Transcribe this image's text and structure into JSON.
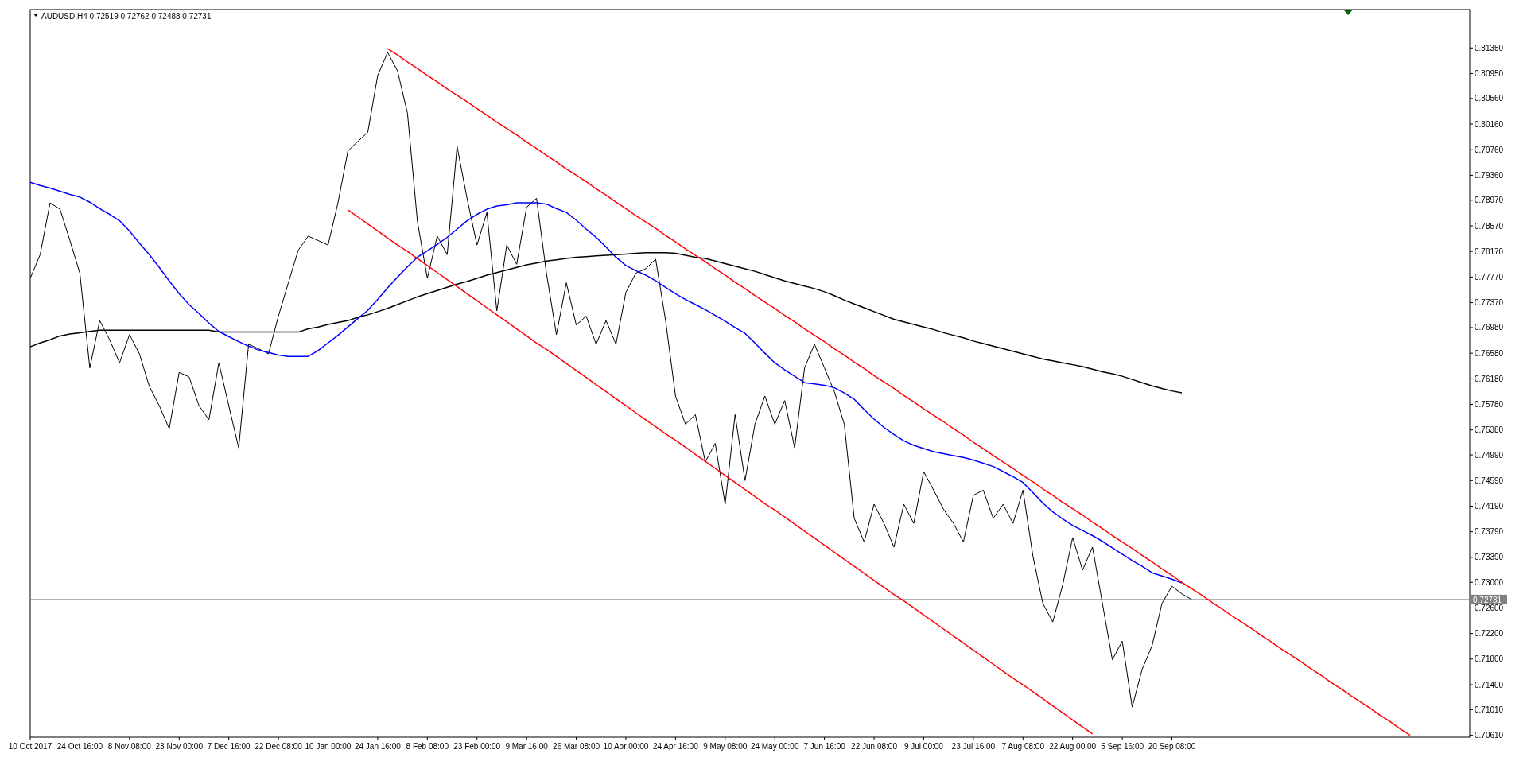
{
  "chart_data": {
    "type": "line",
    "title": "AUDUSD,H4  0.72519 0.72762 0.72488 0.72731",
    "ylim": [
      0.7058,
      0.8195
    ],
    "categories": [
      "10 Oct 2017",
      null,
      null,
      null,
      null,
      "24 Oct 16:00",
      null,
      null,
      null,
      null,
      "8 Nov 08:00",
      null,
      null,
      null,
      null,
      "23 Nov 00:00",
      null,
      null,
      null,
      null,
      "7 Dec 16:00",
      null,
      null,
      null,
      null,
      "22 Dec 08:00",
      null,
      null,
      null,
      null,
      "10 Jan 00:00",
      null,
      null,
      null,
      null,
      "24 Jan 16:00",
      null,
      null,
      null,
      null,
      "8 Feb 08:00",
      null,
      null,
      null,
      null,
      "23 Feb 00:00",
      null,
      null,
      null,
      null,
      "9 Mar 16:00",
      null,
      null,
      null,
      null,
      "26 Mar 08:00",
      null,
      null,
      null,
      null,
      "10 Apr 00:00",
      null,
      null,
      null,
      null,
      "24 Apr 16:00",
      null,
      null,
      null,
      null,
      "9 May 08:00",
      null,
      null,
      null,
      null,
      "24 May 00:00",
      null,
      null,
      null,
      null,
      "7 Jun 16:00",
      null,
      null,
      null,
      null,
      "22 Jun 08:00",
      null,
      null,
      null,
      null,
      "9 Jul 00:00",
      null,
      null,
      null,
      null,
      "23 Jul 16:00",
      null,
      null,
      null,
      null,
      "7 Aug 08:00",
      null,
      null,
      null,
      null,
      "22 Aug 00:00",
      null,
      null,
      null,
      null,
      "5 Sep 16:00",
      null,
      null,
      null,
      null,
      "20 Sep 08:00",
      null,
      null,
      null,
      null,
      null,
      null,
      null,
      null,
      null,
      null,
      null,
      null,
      null,
      null,
      null,
      null,
      null,
      null,
      null,
      null,
      null,
      null,
      null,
      null,
      null,
      null,
      null,
      null,
      null,
      null
    ],
    "yticks": [
      {
        "value": 0.8135,
        "label": "0.81350"
      },
      {
        "value": 0.8095,
        "label": "0.80950"
      },
      {
        "value": 0.8056,
        "label": "0.80560"
      },
      {
        "value": 0.8016,
        "label": "0.80160"
      },
      {
        "value": 0.7976,
        "label": "0.79760"
      },
      {
        "value": 0.7936,
        "label": "0.79360"
      },
      {
        "value": 0.7897,
        "label": "0.78970"
      },
      {
        "value": 0.7857,
        "label": "0.78570"
      },
      {
        "value": 0.7817,
        "label": "0.78170"
      },
      {
        "value": 0.7777,
        "label": "0.77770"
      },
      {
        "value": 0.7737,
        "label": "0.77370"
      },
      {
        "value": 0.7698,
        "label": "0.76980"
      },
      {
        "value": 0.7658,
        "label": "0.76580"
      },
      {
        "value": 0.7618,
        "label": "0.76180"
      },
      {
        "value": 0.7578,
        "label": "0.75780"
      },
      {
        "value": 0.7538,
        "label": "0.75380"
      },
      {
        "value": 0.7499,
        "label": "0.74990"
      },
      {
        "value": 0.7459,
        "label": "0.74590"
      },
      {
        "value": 0.7419,
        "label": "0.74190"
      },
      {
        "value": 0.7379,
        "label": "0.73790"
      },
      {
        "value": 0.7339,
        "label": "0.73390"
      },
      {
        "value": 0.73,
        "label": "0.73000"
      },
      {
        "value": 0.726,
        "label": "0.72600"
      },
      {
        "value": 0.722,
        "label": "0.72200"
      },
      {
        "value": 0.718,
        "label": "0.71800"
      },
      {
        "value": 0.714,
        "label": "0.71400"
      },
      {
        "value": 0.7101,
        "label": "0.71010"
      },
      {
        "value": 0.7061,
        "label": "0.70610"
      }
    ],
    "ref_lines": [
      {
        "axis": "y",
        "value": 0.72731,
        "label": "0.72731",
        "color": "#808080"
      }
    ],
    "series": [
      {
        "color": "#000000",
        "values": [
          0.7775,
          0.7812,
          0.7893,
          0.7883,
          0.7834,
          0.7783,
          0.7635,
          0.7709,
          0.7679,
          0.7643,
          0.7687,
          0.7657,
          0.7606,
          0.7576,
          0.754,
          0.7628,
          0.7621,
          0.7576,
          0.7554,
          0.7643,
          0.7576,
          0.751,
          0.7672,
          0.7665,
          0.7657,
          0.7716,
          0.7768,
          0.7819,
          0.7841,
          0.7834,
          0.7827,
          0.7893,
          0.7974,
          0.7989,
          0.8003,
          0.8092,
          0.8128,
          0.8099,
          0.8033,
          0.7864,
          0.7775,
          0.7841,
          0.7812,
          0.7981,
          0.79,
          0.7827,
          0.7878,
          0.7724,
          0.7827,
          0.7797,
          0.7886,
          0.79,
          0.7783,
          0.7687,
          0.7768,
          0.7702,
          0.7716,
          0.7672,
          0.7709,
          0.7672,
          0.7753,
          0.7783,
          0.779,
          0.7805,
          0.7709,
          0.7591,
          0.7547,
          0.7562,
          0.7488,
          0.7517,
          0.7422,
          0.7562,
          0.7459,
          0.7547,
          0.7591,
          0.7547,
          0.7584,
          0.751,
          0.7635,
          0.7672,
          0.7635,
          0.7598,
          0.7547,
          0.74,
          0.7363,
          0.7422,
          0.7392,
          0.7355,
          0.7422,
          0.7392,
          0.7473,
          0.7444,
          0.7414,
          0.7392,
          0.7363,
          0.7436,
          0.7444,
          0.74,
          0.7422,
          0.7392,
          0.7444,
          0.7341,
          0.7267,
          0.7238,
          0.7296,
          0.737,
          0.7319,
          0.7355,
          0.7267,
          0.7179,
          0.7208,
          0.7105,
          0.7164,
          0.7201,
          0.7267,
          0.7294,
          0.7282,
          0.7273,
          null,
          null,
          null,
          null,
          null,
          null,
          null,
          null,
          null,
          null,
          null,
          null,
          null,
          null,
          null,
          null,
          null,
          null,
          null,
          null,
          null,
          null,
          null,
          null,
          null,
          null,
          null,
          null
        ]
      },
      {
        "color": "#0000ff",
        "values": [
          0.7925,
          0.792,
          0.7916,
          0.7911,
          0.7906,
          0.7902,
          0.7894,
          0.7884,
          0.7875,
          0.7865,
          0.7849,
          0.783,
          0.7812,
          0.7792,
          0.7771,
          0.7751,
          0.7734,
          0.772,
          0.7705,
          0.7692,
          0.7684,
          0.7676,
          0.7669,
          0.7663,
          0.7659,
          0.7655,
          0.7653,
          0.7653,
          0.7653,
          0.7662,
          0.7674,
          0.7686,
          0.7699,
          0.7712,
          0.7725,
          0.7742,
          0.776,
          0.7777,
          0.7793,
          0.7808,
          0.7818,
          0.7828,
          0.7839,
          0.7852,
          0.7865,
          0.7875,
          0.7883,
          0.7888,
          0.789,
          0.7893,
          0.7893,
          0.7893,
          0.7891,
          0.7884,
          0.7878,
          0.7866,
          0.7852,
          0.7839,
          0.7824,
          0.7808,
          0.7795,
          0.7787,
          0.778,
          0.7771,
          0.7761,
          0.7751,
          0.7742,
          0.7734,
          0.7726,
          0.7717,
          0.7708,
          0.7698,
          0.7689,
          0.7674,
          0.7658,
          0.7643,
          0.7632,
          0.7622,
          0.7612,
          0.761,
          0.7608,
          0.7604,
          0.7596,
          0.7586,
          0.757,
          0.7555,
          0.7542,
          0.7531,
          0.7521,
          0.7514,
          0.7509,
          0.7504,
          0.7501,
          0.7498,
          0.7495,
          0.7491,
          0.7486,
          0.7481,
          0.7473,
          0.7465,
          0.7456,
          0.744,
          0.7424,
          0.741,
          0.7399,
          0.7389,
          0.7381,
          0.7373,
          0.7364,
          0.7354,
          0.7344,
          0.7334,
          0.7325,
          0.7315,
          0.731,
          0.7305,
          0.7299,
          null,
          null,
          null,
          null,
          null,
          null,
          null,
          null,
          null,
          null,
          null,
          null,
          null,
          null,
          null,
          null,
          null,
          null,
          null,
          null,
          null,
          null,
          null,
          null,
          null,
          null,
          null,
          null,
          null
        ]
      },
      {
        "color": "#000000",
        "values": [
          0.7668,
          0.7674,
          0.7679,
          0.7685,
          0.7688,
          0.769,
          0.7692,
          0.7694,
          0.7694,
          0.7694,
          0.7694,
          0.7694,
          0.7694,
          0.7694,
          0.7694,
          0.7694,
          0.7694,
          0.7694,
          0.7694,
          0.7691,
          0.7691,
          0.7691,
          0.7691,
          0.7691,
          0.7691,
          0.7691,
          0.7691,
          0.7691,
          0.7696,
          0.7699,
          0.7703,
          0.7706,
          0.7709,
          0.7714,
          0.7718,
          0.7723,
          0.7728,
          0.7734,
          0.774,
          0.7746,
          0.7751,
          0.7756,
          0.7761,
          0.7766,
          0.777,
          0.7775,
          0.778,
          0.7784,
          0.7788,
          0.7792,
          0.7796,
          0.7799,
          0.7802,
          0.7804,
          0.7806,
          0.7808,
          0.7809,
          0.781,
          0.7811,
          0.7812,
          0.7813,
          0.7814,
          0.7815,
          0.7815,
          0.7815,
          0.7814,
          0.7811,
          0.7808,
          0.7806,
          0.7802,
          0.7798,
          0.7794,
          0.779,
          0.7786,
          0.7781,
          0.7776,
          0.7771,
          0.7767,
          0.7763,
          0.7759,
          0.7754,
          0.7748,
          0.7741,
          0.7735,
          0.7729,
          0.7723,
          0.7717,
          0.7711,
          0.7707,
          0.7703,
          0.7699,
          0.7695,
          0.769,
          0.7686,
          0.7682,
          0.7677,
          0.7673,
          0.7669,
          0.7665,
          0.7661,
          0.7657,
          0.7653,
          0.7649,
          0.7646,
          0.7643,
          0.764,
          0.7637,
          0.7633,
          0.7629,
          0.7626,
          0.7622,
          0.7617,
          0.7612,
          0.7607,
          0.7603,
          0.7599,
          0.7596,
          null,
          null,
          null,
          null,
          null,
          null,
          null,
          null,
          null,
          null,
          null,
          null,
          null,
          null,
          null,
          null,
          null,
          null,
          null,
          null,
          null,
          null,
          null,
          null,
          null,
          null,
          null,
          null,
          null
        ]
      },
      {
        "color": "#ff0000",
        "values": [
          null,
          null,
          null,
          null,
          null,
          null,
          null,
          null,
          null,
          null,
          null,
          null,
          null,
          null,
          null,
          null,
          null,
          null,
          null,
          null,
          null,
          null,
          null,
          null,
          null,
          null,
          null,
          null,
          null,
          null,
          null,
          null,
          null,
          null,
          null,
          null,
          0.8134,
          0.8124,
          0.8113,
          0.8103,
          0.8092,
          0.8082,
          0.8071,
          0.8061,
          0.8051,
          0.804,
          0.803,
          0.8019,
          0.8009,
          0.7999,
          0.7988,
          0.7978,
          0.7967,
          0.7957,
          0.7946,
          0.7936,
          0.7926,
          0.7915,
          0.7905,
          0.7894,
          0.7884,
          0.7873,
          0.7863,
          0.7853,
          0.7842,
          0.7832,
          0.7821,
          0.7811,
          0.7801,
          0.779,
          0.778,
          0.7769,
          0.7759,
          0.7748,
          0.7738,
          0.7728,
          0.7717,
          0.7707,
          0.7696,
          0.7686,
          0.7676,
          0.7665,
          0.7655,
          0.7644,
          0.7634,
          0.7623,
          0.7613,
          0.7603,
          0.7592,
          0.7582,
          0.7571,
          0.7561,
          0.7551,
          0.754,
          0.753,
          0.7519,
          0.7509,
          0.7498,
          0.7488,
          0.7478,
          0.7467,
          0.7457,
          0.7446,
          0.7436,
          0.7425,
          0.7415,
          0.7405,
          0.7394,
          0.7384,
          0.7373,
          0.7363,
          0.7353,
          0.7342,
          0.7332,
          0.7321,
          0.7311,
          0.73,
          0.729,
          0.728,
          0.7269,
          0.7259,
          0.7248,
          0.7238,
          0.7228,
          0.7217,
          0.7207,
          0.7196,
          0.7186,
          0.7176,
          0.7165,
          0.7155,
          0.7144,
          0.7134,
          0.7123,
          0.7113,
          0.7103,
          0.7092,
          0.7082,
          0.7071,
          0.7061,
          null,
          null,
          null,
          null,
          null,
          null
        ]
      },
      {
        "color": "#ff0000",
        "values": [
          null,
          null,
          null,
          null,
          null,
          null,
          null,
          null,
          null,
          null,
          null,
          null,
          null,
          null,
          null,
          null,
          null,
          null,
          null,
          null,
          null,
          null,
          null,
          null,
          null,
          null,
          null,
          null,
          null,
          null,
          null,
          null,
          0.7882,
          0.7871,
          0.786,
          0.7849,
          0.7838,
          0.7827,
          0.7817,
          0.7806,
          0.7795,
          0.7784,
          0.7773,
          0.7762,
          0.7751,
          0.774,
          0.7729,
          0.7718,
          0.7707,
          0.7696,
          0.7685,
          0.7674,
          0.7664,
          0.7653,
          0.7642,
          0.7631,
          0.762,
          0.7609,
          0.7598,
          0.7587,
          0.7576,
          0.7565,
          0.7554,
          0.7543,
          0.7532,
          0.7522,
          0.7511,
          0.75,
          0.7489,
          0.7478,
          0.7467,
          0.7456,
          0.7445,
          0.7434,
          0.7423,
          0.7413,
          0.7402,
          0.7391,
          0.738,
          0.7369,
          0.7358,
          0.7347,
          0.7336,
          0.7325,
          0.7314,
          0.7303,
          0.7292,
          0.7281,
          0.7271,
          0.726,
          0.7249,
          0.7238,
          0.7227,
          0.7216,
          0.7205,
          0.7194,
          0.7183,
          0.7172,
          0.7161,
          0.715,
          0.714,
          0.7129,
          0.7118,
          0.7107,
          0.7096,
          0.7085,
          0.7074,
          0.7063,
          null,
          null,
          null,
          null,
          null,
          null,
          null,
          null,
          null,
          null,
          null,
          null,
          null,
          null,
          null,
          null,
          null,
          null,
          null,
          null,
          null,
          null,
          null,
          null,
          null,
          null,
          null,
          null,
          null,
          null,
          null,
          null,
          null,
          null,
          null,
          null,
          null,
          null
        ]
      }
    ]
  }
}
